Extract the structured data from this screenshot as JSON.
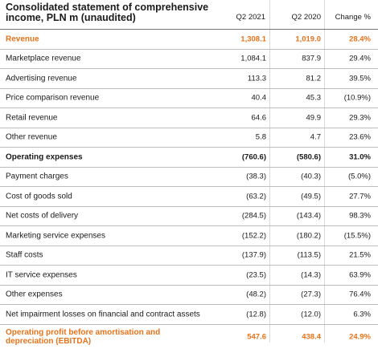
{
  "title": "Consolidated statement of comprehensive income, PLN m (unaudited)",
  "columns": {
    "q2_2021": "Q2 2021",
    "q2_2020": "Q2 2020",
    "change": "Change %"
  },
  "rows": [
    {
      "label": "Revenue",
      "q2_2021": "1,308.1",
      "q2_2020": "1,019.0",
      "change": "28.4%"
    },
    {
      "label": "Marketplace revenue",
      "q2_2021": "1,084.1",
      "q2_2020": "837.9",
      "change": "29.4%"
    },
    {
      "label": "Advertising revenue",
      "q2_2021": "113.3",
      "q2_2020": "81.2",
      "change": "39.5%"
    },
    {
      "label": "Price comparison revenue",
      "q2_2021": "40.4",
      "q2_2020": "45.3",
      "change": "(10.9%)"
    },
    {
      "label": "Retail revenue",
      "q2_2021": "64.6",
      "q2_2020": "49.9",
      "change": "29.3%"
    },
    {
      "label": "Other revenue",
      "q2_2021": "5.8",
      "q2_2020": "4.7",
      "change": "23.6%"
    },
    {
      "label": "Operating expenses",
      "q2_2021": "(760.6)",
      "q2_2020": "(580.6)",
      "change": "31.0%"
    },
    {
      "label": "Payment charges",
      "q2_2021": "(38.3)",
      "q2_2020": "(40.3)",
      "change": "(5.0%)"
    },
    {
      "label": "Cost of goods sold",
      "q2_2021": "(63.2)",
      "q2_2020": "(49.5)",
      "change": "27.7%"
    },
    {
      "label": "Net costs of delivery",
      "q2_2021": "(284.5)",
      "q2_2020": "(143.4)",
      "change": "98.3%"
    },
    {
      "label": "Marketing service expenses",
      "q2_2021": "(152.2)",
      "q2_2020": "(180.2)",
      "change": "(15.5%)"
    },
    {
      "label": "Staff costs",
      "q2_2021": "(137.9)",
      "q2_2020": "(113.5)",
      "change": "21.5%"
    },
    {
      "label": "IT service expenses",
      "q2_2021": "(23.5)",
      "q2_2020": "(14.3)",
      "change": "63.9%"
    },
    {
      "label": "Other expenses",
      "q2_2021": "(48.2)",
      "q2_2020": "(27.3)",
      "change": "76.4%"
    },
    {
      "label": "Net impairment losses on financial and contract assets",
      "q2_2021": "(12.8)",
      "q2_2020": "(12.0)",
      "change": "6.3%"
    },
    {
      "label": "Operating profit before amortisation and depreciation (EBITDA)",
      "q2_2021": "547.6",
      "q2_2020": "438.4",
      "change": "24.9%"
    }
  ],
  "colors": {
    "highlight": "#e8731a",
    "text": "#1a1a1a"
  }
}
